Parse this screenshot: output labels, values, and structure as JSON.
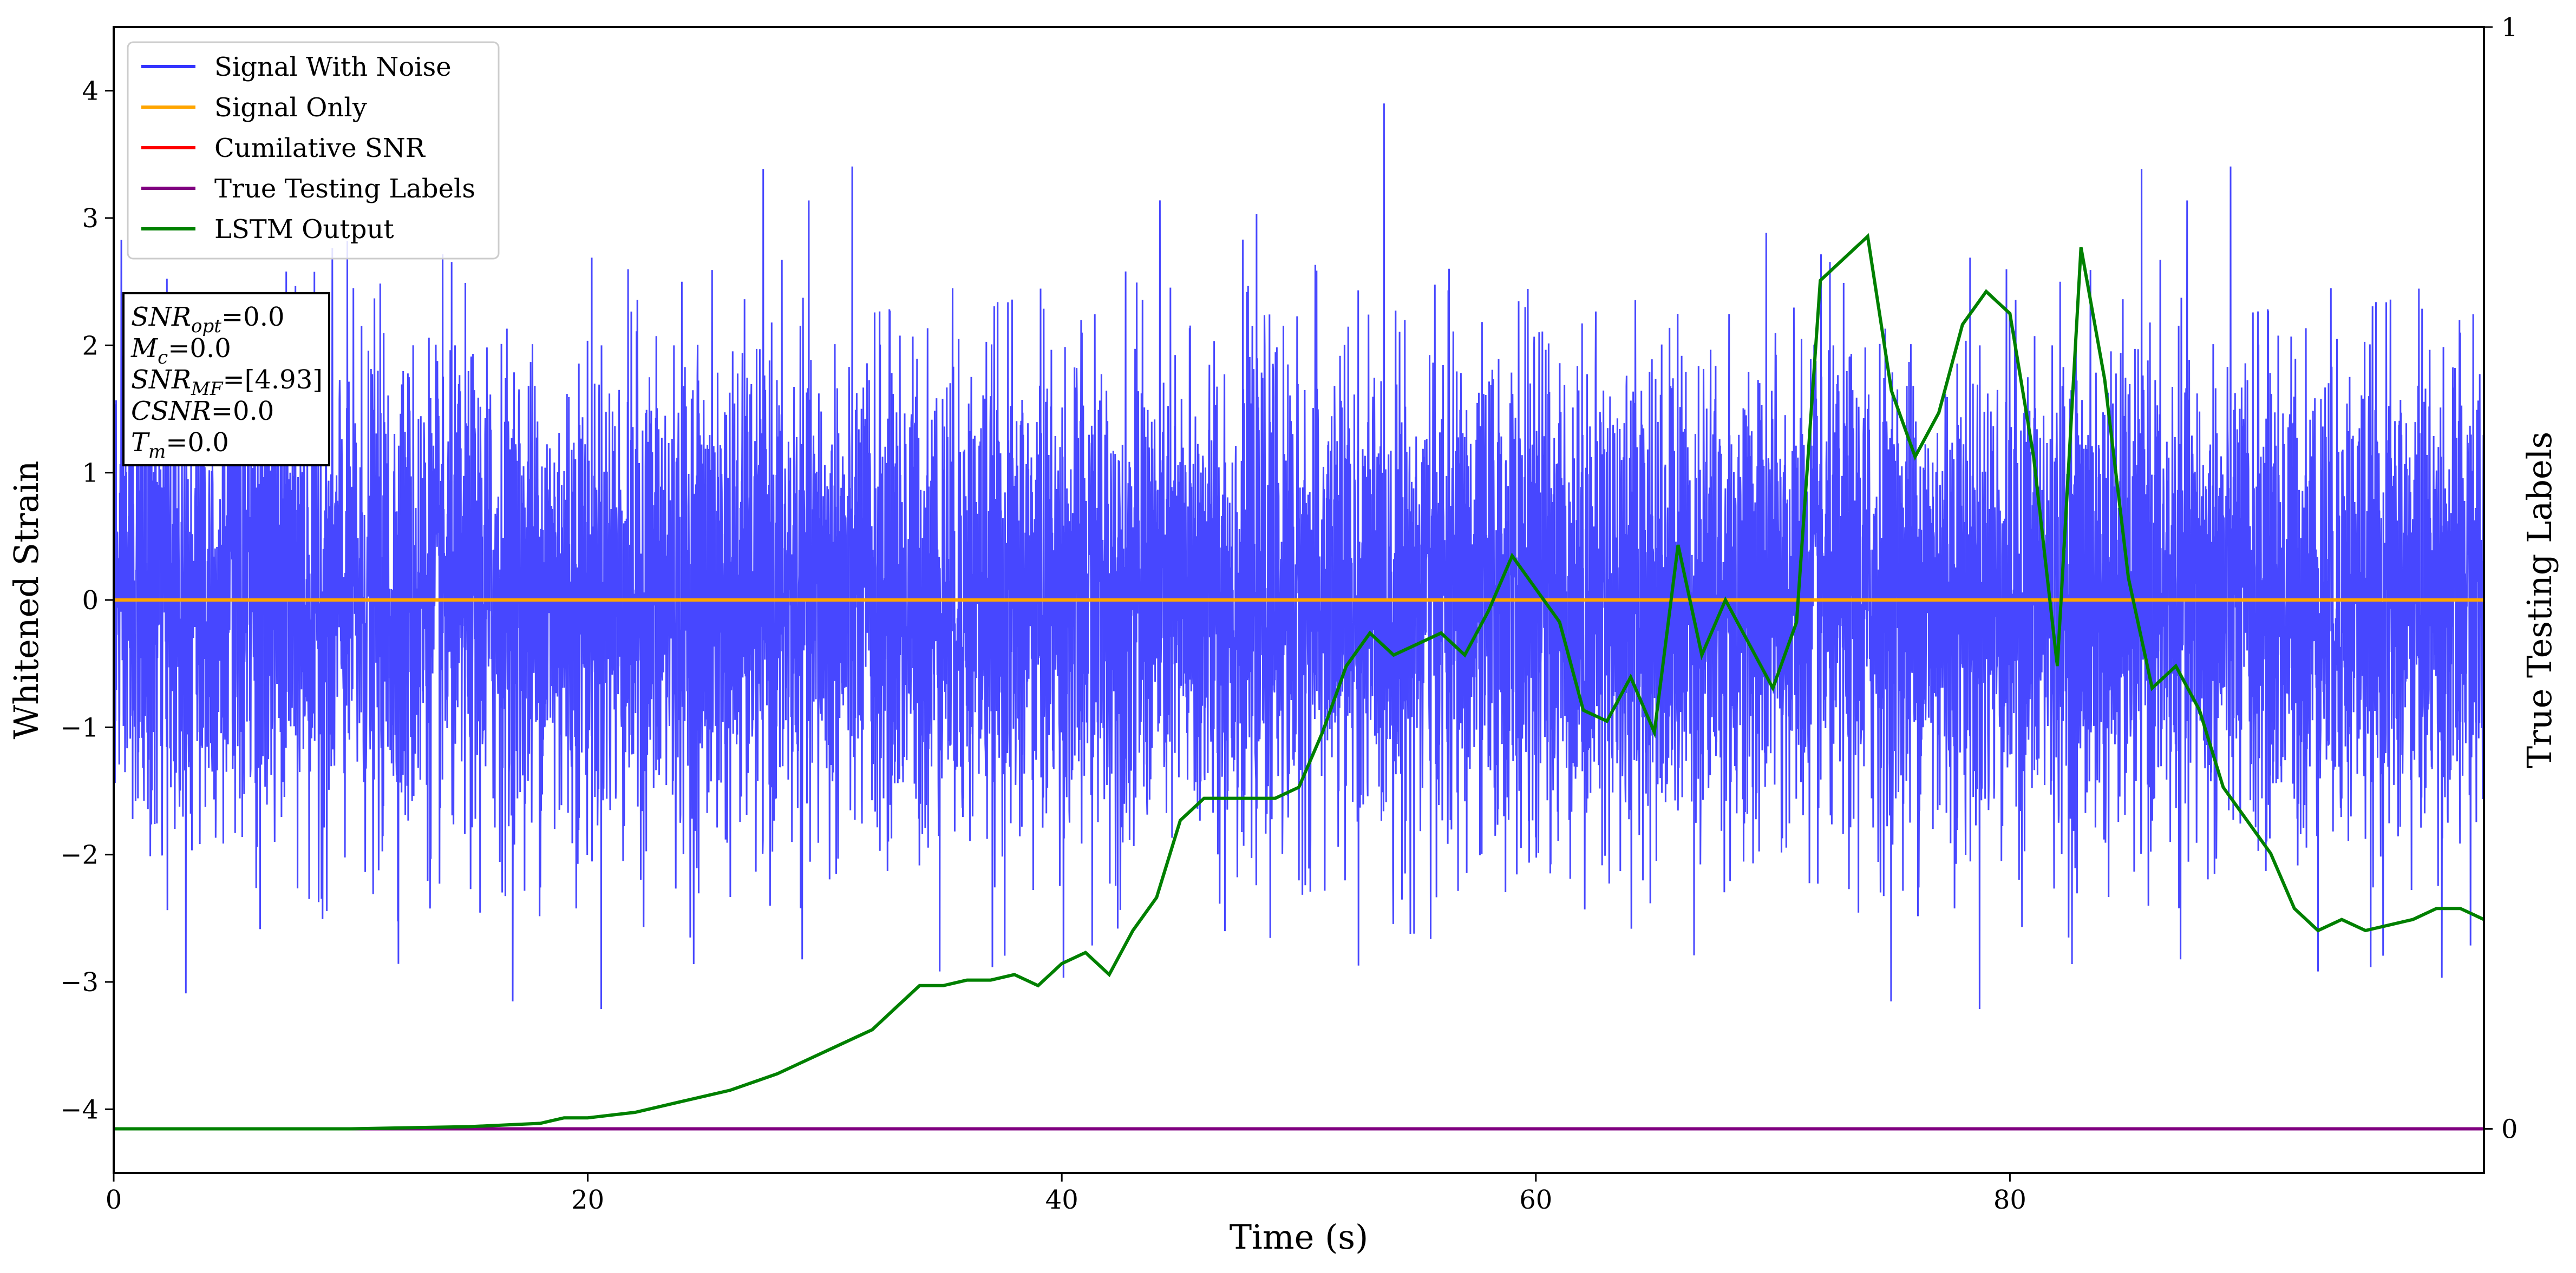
{
  "chart_data": {
    "type": "line",
    "xlabel": "Time (s)",
    "ylabel": "Whitened Strain",
    "ylabel_right": "True Testing Labels",
    "xlim": [
      0,
      100
    ],
    "ylim": [
      -4.5,
      4.5
    ],
    "ylim_right": [
      -0.04,
      1.0
    ],
    "xticks": [
      0,
      20,
      40,
      60,
      80
    ],
    "yticks": [
      -4,
      -3,
      -2,
      -1,
      0,
      1,
      2,
      3,
      4
    ],
    "yticks_right": [
      0,
      1
    ],
    "grid": false,
    "legend_position": "top-left",
    "legend": [
      {
        "label": "Signal With Noise",
        "color": "#3333ff"
      },
      {
        "label": "Signal Only",
        "color": "#ffa500"
      },
      {
        "label": "Cumilative SNR",
        "color": "#ff0000"
      },
      {
        "label": "True Testing Labels",
        "color": "#800080"
      },
      {
        "label": "LSTM Output",
        "color": "#008000"
      }
    ],
    "info_box": [
      {
        "base": "SNR",
        "sub": "opt",
        "value": "=0.0"
      },
      {
        "base": "M",
        "sub": "c",
        "value": "=0.0"
      },
      {
        "base": "SNR",
        "sub": "MF",
        "value": "=[4.93]"
      },
      {
        "base": "CSNR",
        "sub": "",
        "value": "=0.0"
      },
      {
        "base": "T",
        "sub": "m",
        "value": "=0.0"
      }
    ],
    "series": [
      {
        "name": "Signal With Noise",
        "color": "#3333ff",
        "note": "dense noise, approximately Gaussian, std ~1, spanning roughly -3.6 to 4.1"
      },
      {
        "name": "Signal Only",
        "color": "#ffa500",
        "x": [
          0,
          100
        ],
        "y": [
          0,
          0
        ]
      },
      {
        "name": "True Testing Labels",
        "color": "#800080",
        "axis": "right",
        "x": [
          0,
          100
        ],
        "y": [
          0,
          0
        ]
      },
      {
        "name": "LSTM Output",
        "color": "#008000",
        "axis": "right",
        "x": [
          0,
          10,
          15,
          18,
          19,
          20,
          22,
          24,
          26,
          28,
          29,
          30,
          31,
          32,
          33,
          34,
          35,
          36,
          37,
          38,
          39,
          40,
          41,
          42,
          43,
          44,
          45,
          46,
          47,
          48,
          49,
          50,
          51,
          52,
          53,
          54,
          55,
          56,
          57,
          58,
          59,
          60,
          61,
          62,
          63,
          64,
          65,
          66,
          67,
          68,
          69,
          70,
          71,
          72,
          73,
          74,
          75,
          76,
          77,
          78,
          79,
          80,
          81,
          82,
          83,
          84,
          85,
          86,
          87,
          88,
          89,
          90,
          91,
          92,
          93,
          94,
          95,
          96,
          97,
          98,
          99,
          100
        ],
        "y": [
          0.0,
          0.0,
          0.002,
          0.005,
          0.01,
          0.01,
          0.015,
          0.025,
          0.035,
          0.05,
          0.06,
          0.07,
          0.08,
          0.09,
          0.11,
          0.13,
          0.13,
          0.135,
          0.135,
          0.14,
          0.13,
          0.15,
          0.16,
          0.14,
          0.18,
          0.21,
          0.28,
          0.3,
          0.3,
          0.3,
          0.3,
          0.31,
          0.36,
          0.42,
          0.45,
          0.43,
          0.44,
          0.45,
          0.43,
          0.47,
          0.52,
          0.49,
          0.46,
          0.38,
          0.37,
          0.41,
          0.36,
          0.53,
          0.43,
          0.48,
          0.44,
          0.4,
          0.46,
          0.77,
          0.79,
          0.81,
          0.67,
          0.61,
          0.65,
          0.73,
          0.76,
          0.74,
          0.61,
          0.42,
          0.8,
          0.68,
          0.5,
          0.4,
          0.42,
          0.38,
          0.31,
          0.28,
          0.25,
          0.2,
          0.18,
          0.19,
          0.18,
          0.185,
          0.19,
          0.2,
          0.2,
          0.19
        ]
      }
    ]
  }
}
